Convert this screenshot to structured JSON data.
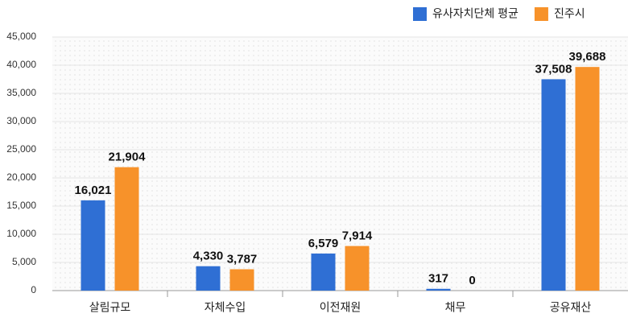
{
  "chart_data": {
    "type": "bar",
    "categories": [
      "살림규모",
      "자체수입",
      "이전재원",
      "채무",
      "공유재산"
    ],
    "series": [
      {
        "name": "유사자치단체 평균",
        "color": "#2f6fd4",
        "values": [
          16021,
          4330,
          6579,
          317,
          37508
        ],
        "value_labels": [
          "16,021",
          "4,330",
          "6,579",
          "317",
          "37,508"
        ]
      },
      {
        "name": "진주시",
        "color": "#f7922a",
        "values": [
          21904,
          3787,
          7914,
          0,
          39688
        ],
        "value_labels": [
          "21,904",
          "3,787",
          "7,914",
          "0",
          "39,688"
        ]
      }
    ],
    "ylim": [
      0,
      45000
    ],
    "yticks": [
      0,
      {
        "value": 5000,
        "label": "5,000"
      },
      {
        "value": 10000,
        "label": "10,000"
      },
      {
        "value": 15000,
        "label": "15,000"
      },
      {
        "value": 20000,
        "label": "20,000"
      },
      {
        "value": 25000,
        "label": "25,000"
      },
      {
        "value": 30000,
        "label": "30,000"
      },
      {
        "value": 35000,
        "label": "35,000"
      },
      {
        "value": 40000,
        "label": "40,000"
      },
      {
        "value": 45000,
        "label": "45,000"
      }
    ],
    "grid": true,
    "legend": "top-right"
  }
}
